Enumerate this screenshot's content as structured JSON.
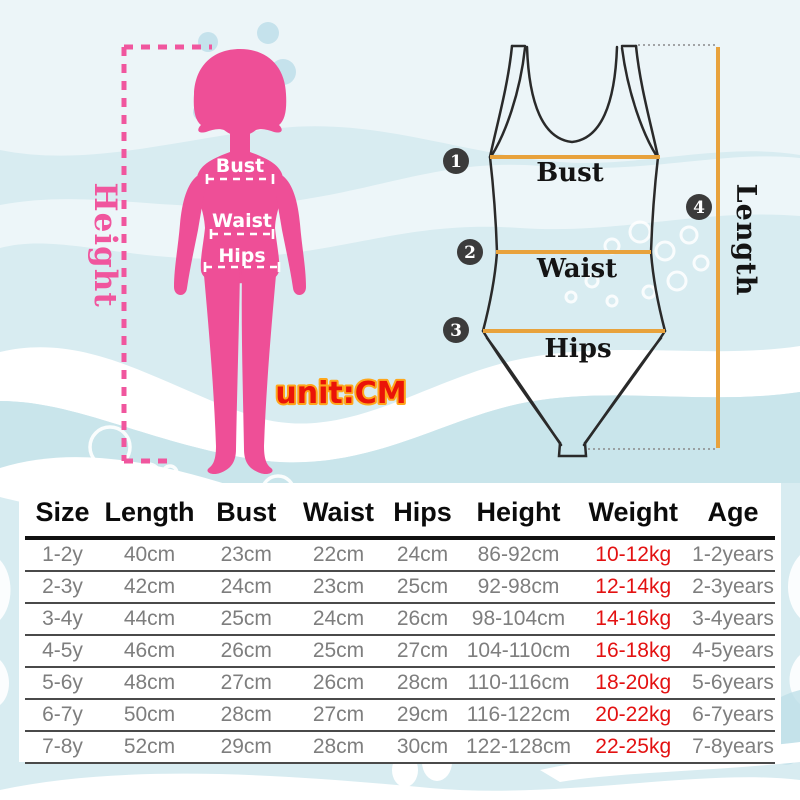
{
  "colors": {
    "figure_pink": "#ee4f97",
    "height_pink": "#f0569e",
    "measure_line_orange": "#e8a23c",
    "suit_outline": "#2a2a2a",
    "unit_text_red": "#ea1408",
    "unit_text_outline_orange": "#ffa61b",
    "weight_value_red": "#e31111",
    "table_value_gray": "#7e7e7e",
    "background_blue": "#d8ecf1"
  },
  "left_diagram": {
    "height_label": "Height",
    "bust_label": "Bust",
    "waist_label": "Waist",
    "hips_label": "Hips"
  },
  "right_diagram": {
    "markers": [
      {
        "num": "1",
        "label": "Bust"
      },
      {
        "num": "2",
        "label": "Waist"
      },
      {
        "num": "3",
        "label": "Hips"
      },
      {
        "num": "4",
        "label": "Length"
      }
    ]
  },
  "unit_note": "unit:CM",
  "table": {
    "headers": [
      "Size",
      "Length",
      "Bust",
      "Waist",
      "Hips",
      "Height",
      "Weight",
      "Age"
    ],
    "highlight_column": 6,
    "rows": [
      [
        "1-2y",
        "40cm",
        "23cm",
        "22cm",
        "24cm",
        "86-92cm",
        "10-12kg",
        "1-2years"
      ],
      [
        "2-3y",
        "42cm",
        "24cm",
        "23cm",
        "25cm",
        "92-98cm",
        "12-14kg",
        "2-3years"
      ],
      [
        "3-4y",
        "44cm",
        "25cm",
        "24cm",
        "26cm",
        "98-104cm",
        "14-16kg",
        "3-4years"
      ],
      [
        "4-5y",
        "46cm",
        "26cm",
        "25cm",
        "27cm",
        "104-110cm",
        "16-18kg",
        "4-5years"
      ],
      [
        "5-6y",
        "48cm",
        "27cm",
        "26cm",
        "28cm",
        "110-116cm",
        "18-20kg",
        "5-6years"
      ],
      [
        "6-7y",
        "50cm",
        "28cm",
        "27cm",
        "29cm",
        "116-122cm",
        "20-22kg",
        "6-7years"
      ],
      [
        "7-8y",
        "52cm",
        "29cm",
        "28cm",
        "30cm",
        "122-128cm",
        "22-25kg",
        "7-8years"
      ]
    ]
  }
}
